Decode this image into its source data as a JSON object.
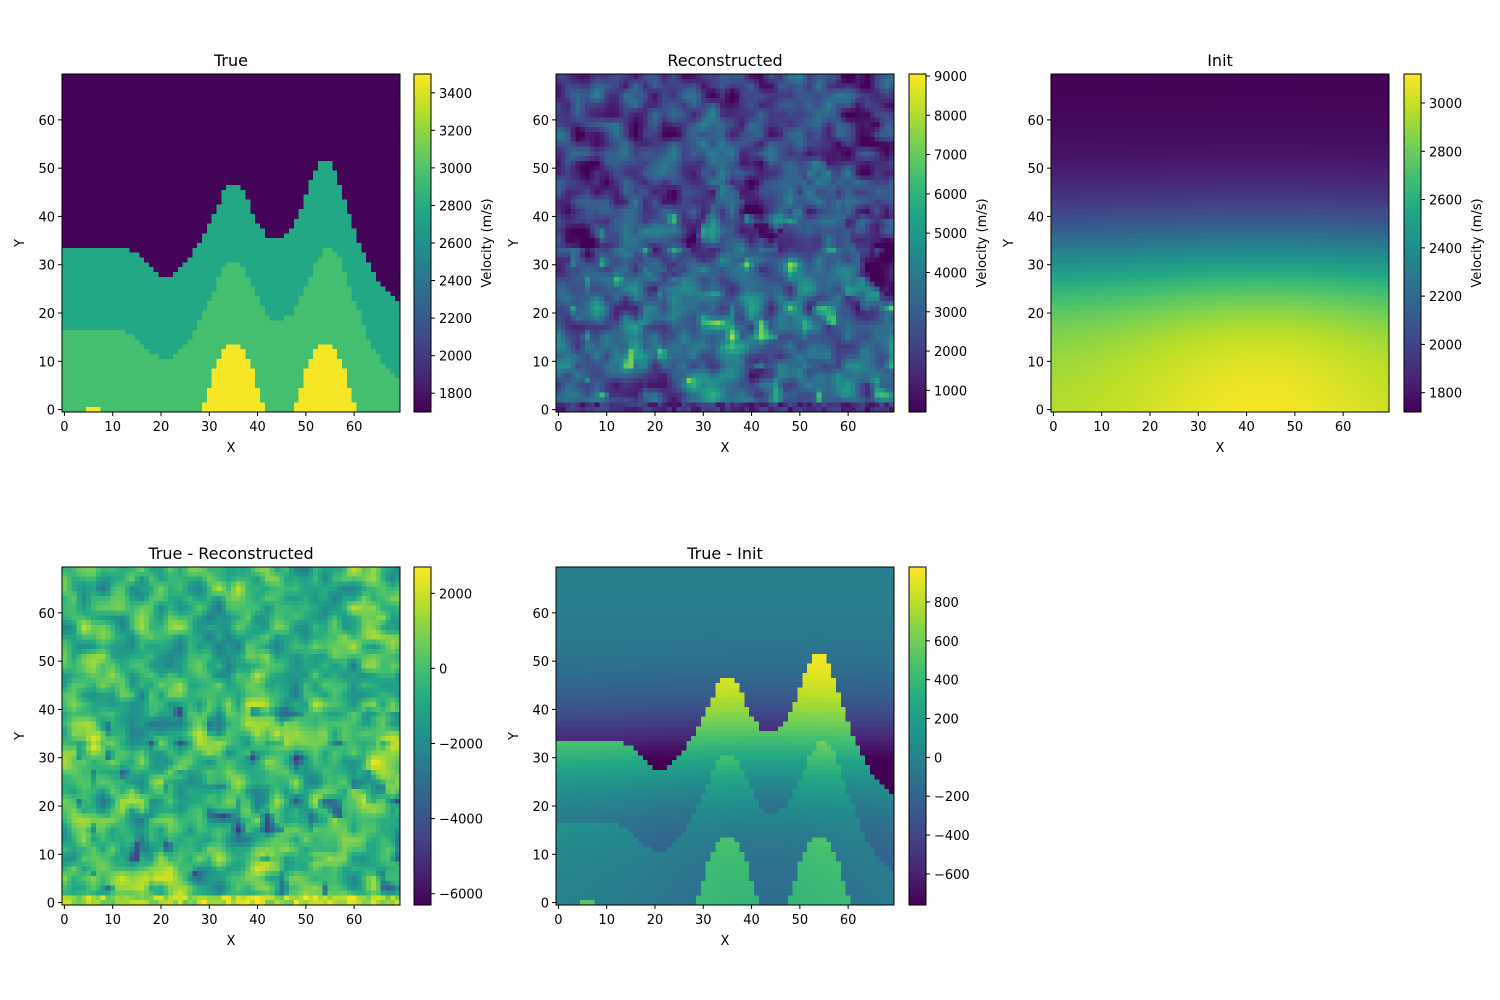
{
  "chart_data": [
    {
      "type": "heatmap",
      "title": "True",
      "xlabel": "X",
      "ylabel": "Y",
      "colorbar_label": "Velocity (m/s)",
      "xticks": [
        0,
        10,
        20,
        30,
        40,
        50,
        60
      ],
      "yticks": [
        0,
        10,
        20,
        30,
        40,
        50,
        60
      ],
      "xlim": [
        -0.5,
        69.5
      ],
      "ylim": [
        69.5,
        -0.5
      ],
      "vrange": [
        1700,
        3500
      ],
      "colorbar_ticks": [
        1800,
        2000,
        2200,
        2400,
        2600,
        2800,
        3000,
        3200,
        3400
      ],
      "field": "true",
      "colormap": "viridis"
    },
    {
      "type": "heatmap",
      "title": "Reconstructed",
      "xlabel": "X",
      "ylabel": "Y",
      "colorbar_label": "Velocity (m/s)",
      "xticks": [
        0,
        10,
        20,
        30,
        40,
        50,
        60
      ],
      "yticks": [
        0,
        10,
        20,
        30,
        40,
        50,
        60
      ],
      "xlim": [
        -0.5,
        69.5
      ],
      "ylim": [
        69.5,
        -0.5
      ],
      "vrange": [
        450,
        9050
      ],
      "colorbar_ticks": [
        1000,
        2000,
        3000,
        4000,
        5000,
        6000,
        7000,
        8000,
        9000
      ],
      "field": "reconstructed",
      "colormap": "viridis"
    },
    {
      "type": "heatmap",
      "title": "Init",
      "xlabel": "X",
      "ylabel": "Y",
      "colorbar_label": "Velocity (m/s)",
      "xticks": [
        0,
        10,
        20,
        30,
        40,
        50,
        60
      ],
      "yticks": [
        0,
        10,
        20,
        30,
        40,
        50,
        60
      ],
      "xlim": [
        -0.5,
        69.5
      ],
      "ylim": [
        69.5,
        -0.5
      ],
      "vrange": [
        1720,
        3120
      ],
      "colorbar_ticks": [
        1800,
        2000,
        2200,
        2400,
        2600,
        2800,
        3000
      ],
      "field": "init",
      "colormap": "viridis"
    },
    {
      "type": "heatmap",
      "title": "True - Reconstructed",
      "xlabel": "X",
      "ylabel": "Y",
      "colorbar_label": "",
      "xticks": [
        0,
        10,
        20,
        30,
        40,
        50,
        60
      ],
      "yticks": [
        0,
        10,
        20,
        30,
        40,
        50,
        60
      ],
      "xlim": [
        -0.5,
        69.5
      ],
      "ylim": [
        69.5,
        -0.5
      ],
      "vrange": [
        -6300,
        2700
      ],
      "colorbar_ticks": [
        -6000,
        -4000,
        -2000,
        0,
        2000
      ],
      "colorbar_tick_labels": [
        "−6000",
        "−4000",
        "−2000",
        "0",
        "2000"
      ],
      "field": "diff_reconstructed",
      "colormap": "viridis"
    },
    {
      "type": "heatmap",
      "title": "True - Init",
      "xlabel": "X",
      "ylabel": "Y",
      "colorbar_label": "",
      "xticks": [
        0,
        10,
        20,
        30,
        40,
        50,
        60
      ],
      "yticks": [
        0,
        10,
        20,
        30,
        40,
        50,
        60
      ],
      "xlim": [
        -0.5,
        69.5
      ],
      "ylim": [
        69.5,
        -0.5
      ],
      "vrange": [
        -760,
        980
      ],
      "colorbar_ticks": [
        -600,
        -400,
        -200,
        0,
        200,
        400,
        600,
        800
      ],
      "colorbar_tick_labels": [
        "−600",
        "−400",
        "−200",
        "0",
        "200",
        "400",
        "600",
        "800"
      ],
      "field": "diff_init",
      "colormap": "viridis"
    }
  ]
}
